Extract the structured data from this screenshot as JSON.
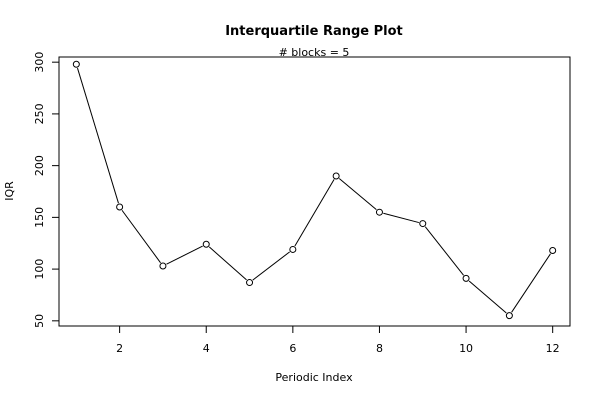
{
  "chart_data": {
    "type": "line",
    "title": "Interquartile Range Plot",
    "subtitle": "# blocks =  5",
    "xlabel": "Periodic Index",
    "ylabel": "IQR",
    "xlim": [
      0.6,
      12.4
    ],
    "ylim": [
      45,
      305
    ],
    "xticks": [
      2,
      4,
      6,
      8,
      10,
      12
    ],
    "yticks": [
      50,
      100,
      150,
      200,
      250,
      300
    ],
    "grid": false,
    "series": [
      {
        "x": [
          1,
          2,
          3,
          4,
          5,
          6,
          7,
          8,
          9,
          10,
          11,
          12
        ],
        "values": [
          298,
          160,
          103,
          124,
          87,
          119,
          190,
          155,
          144,
          91,
          55,
          118
        ]
      }
    ]
  }
}
